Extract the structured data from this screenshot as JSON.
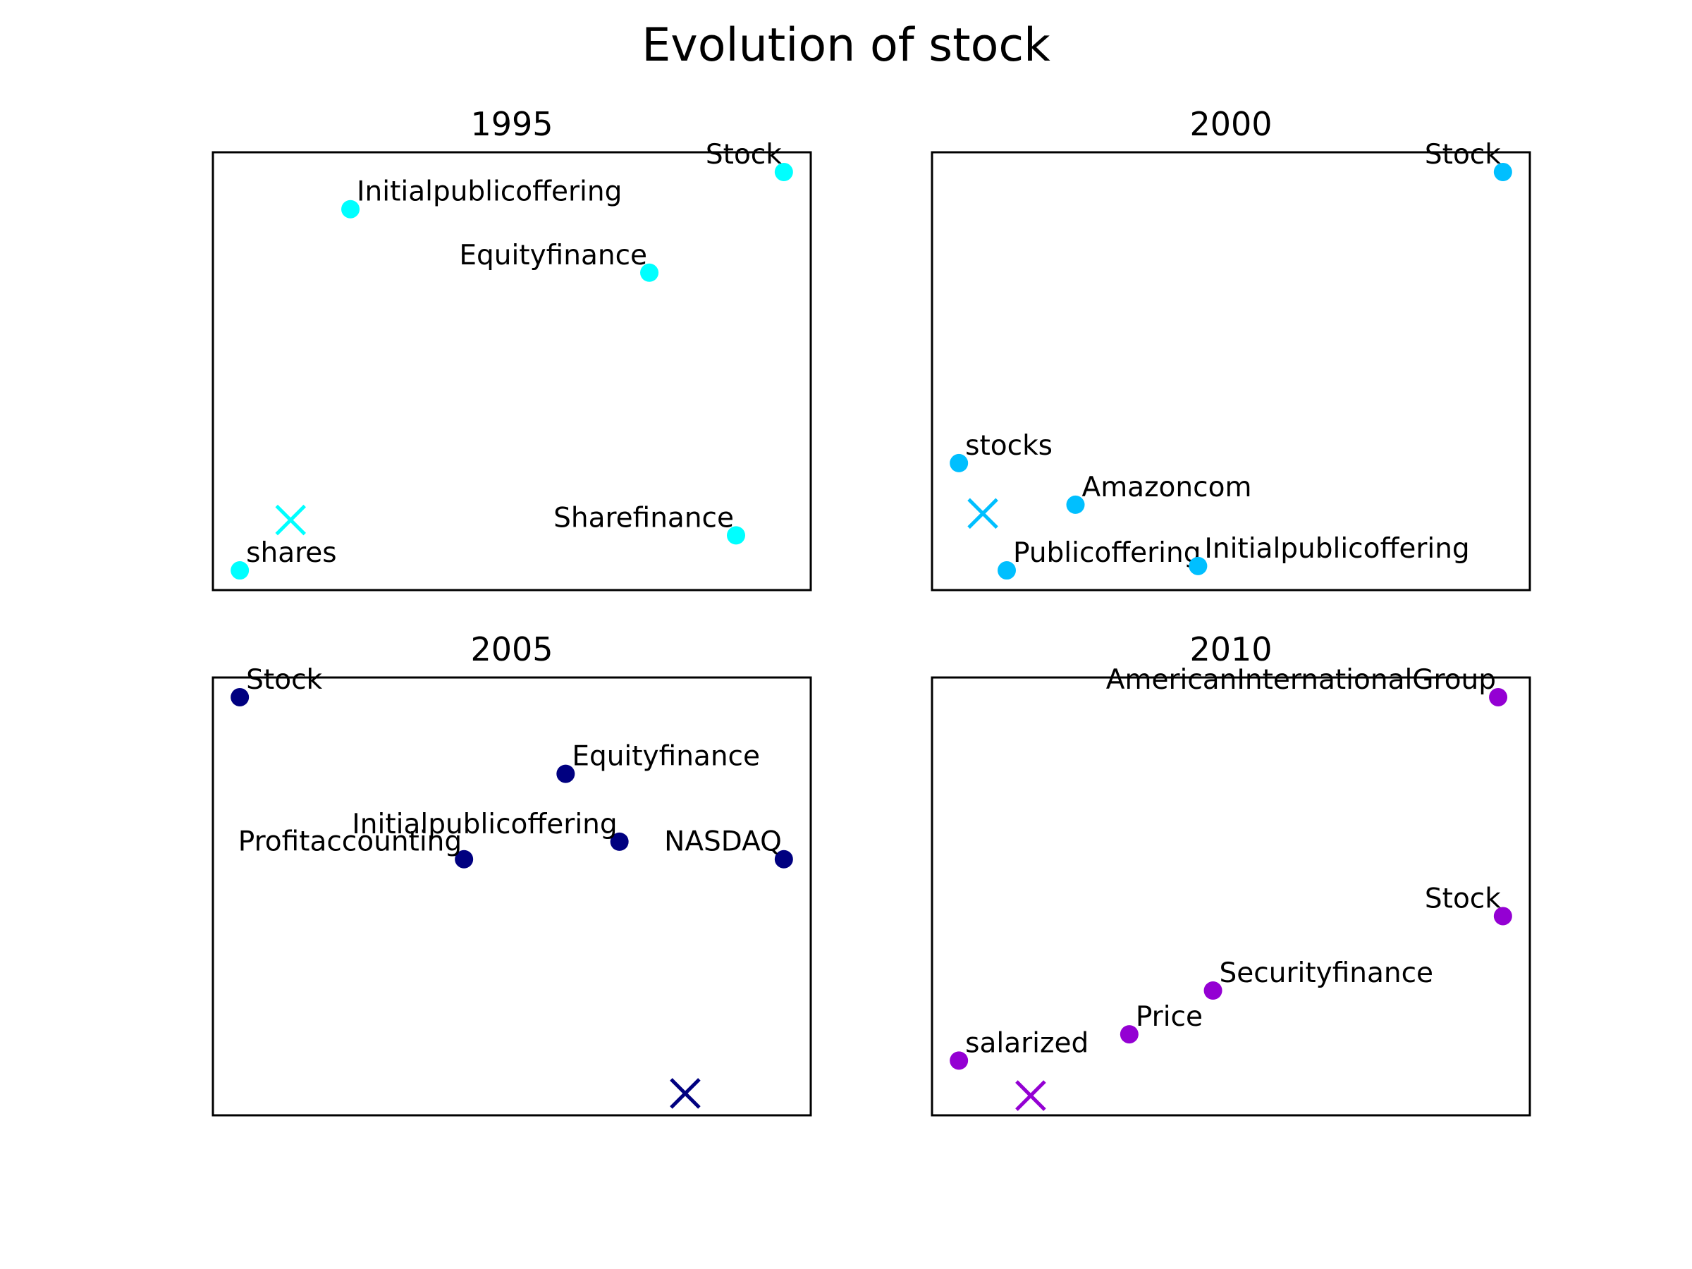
{
  "chart_data": {
    "title": "Evolution of stock",
    "type": "scatter",
    "grid": false,
    "subplots": [
      {
        "title": "1995",
        "color": "#00ffff",
        "marker": {
          "x": 0.13,
          "y": 0.16
        },
        "points": [
          {
            "label": "Initialpublicoffering",
            "x": 0.23,
            "y": 0.87,
            "label_side": "right"
          },
          {
            "label": "Stock",
            "x": 0.955,
            "y": 0.955,
            "label_side": "left"
          },
          {
            "label": "Equityfinance",
            "x": 0.73,
            "y": 0.725,
            "label_side": "left"
          },
          {
            "label": "shares",
            "x": 0.045,
            "y": 0.045,
            "label_side": "right"
          },
          {
            "label": "Sharefinance",
            "x": 0.875,
            "y": 0.125,
            "label_side": "left"
          }
        ]
      },
      {
        "title": "2000",
        "color": "#00bfff",
        "marker": {
          "x": 0.085,
          "y": 0.175
        },
        "points": [
          {
            "label": "Stock",
            "x": 0.955,
            "y": 0.955,
            "label_side": "left"
          },
          {
            "label": "stocks",
            "x": 0.045,
            "y": 0.29,
            "label_side": "right"
          },
          {
            "label": "Amazoncom",
            "x": 0.24,
            "y": 0.195,
            "label_side": "right"
          },
          {
            "label": "Publicoffering",
            "x": 0.125,
            "y": 0.045,
            "label_side": "right"
          },
          {
            "label": "Initialpublicoffering",
            "x": 0.445,
            "y": 0.055,
            "label_side": "right"
          }
        ]
      },
      {
        "title": "2005",
        "color": "#000080",
        "marker": {
          "x": 0.79,
          "y": 0.05
        },
        "points": [
          {
            "label": "Stock",
            "x": 0.045,
            "y": 0.955,
            "label_side": "right"
          },
          {
            "label": "Equityfinance",
            "x": 0.59,
            "y": 0.78,
            "label_side": "right"
          },
          {
            "label": "Initialpublicoffering",
            "x": 0.68,
            "y": 0.625,
            "label_side": "left"
          },
          {
            "label": "Profitaccounting",
            "x": 0.42,
            "y": 0.585,
            "label_side": "left"
          },
          {
            "label": "NASDAQ",
            "x": 0.955,
            "y": 0.585,
            "label_side": "left"
          }
        ]
      },
      {
        "title": "2010",
        "color": "#9400d3",
        "marker": {
          "x": 0.165,
          "y": 0.045
        },
        "points": [
          {
            "label": "AmericanInternationalGroup",
            "x": 0.947,
            "y": 0.955,
            "label_side": "left"
          },
          {
            "label": "Stock",
            "x": 0.955,
            "y": 0.455,
            "label_side": "left"
          },
          {
            "label": "Securityfinance",
            "x": 0.47,
            "y": 0.285,
            "label_side": "right"
          },
          {
            "label": "Price",
            "x": 0.33,
            "y": 0.185,
            "label_side": "right"
          },
          {
            "label": "salarized",
            "x": 0.045,
            "y": 0.125,
            "label_side": "right"
          }
        ]
      }
    ]
  }
}
